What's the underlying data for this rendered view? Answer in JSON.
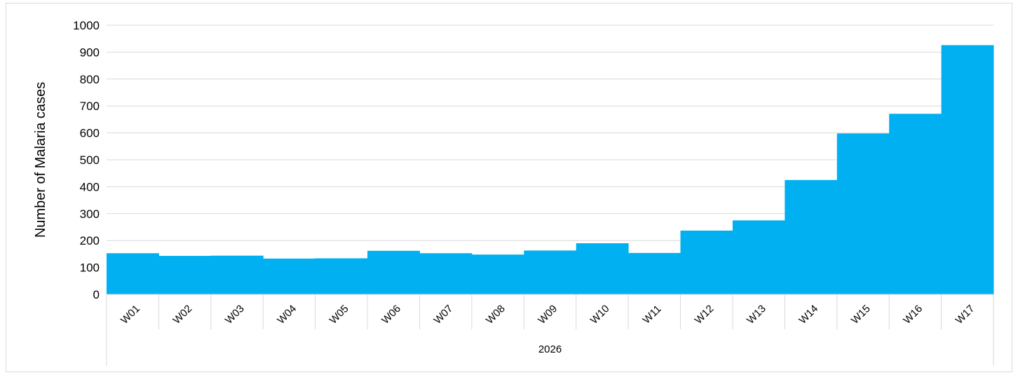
{
  "chart_data": {
    "type": "bar",
    "title": "",
    "xlabel": "",
    "ylabel": "Number of Malaria cases",
    "group_label": "2026",
    "categories": [
      "W01",
      "W02",
      "W03",
      "W04",
      "W05",
      "W06",
      "W07",
      "W08",
      "W09",
      "W10",
      "W11",
      "W12",
      "W13",
      "W14",
      "W15",
      "W16",
      "W17"
    ],
    "values": [
      153,
      143,
      144,
      133,
      134,
      162,
      153,
      148,
      163,
      190,
      154,
      237,
      275,
      425,
      598,
      671,
      926
    ],
    "ylim": [
      0,
      1000
    ],
    "yticks": [
      0,
      100,
      200,
      300,
      400,
      500,
      600,
      700,
      800,
      900,
      1000
    ],
    "grid": true,
    "legend": "none",
    "bar_color": "#00b0f0",
    "grid_color": "#d9d9d9"
  }
}
